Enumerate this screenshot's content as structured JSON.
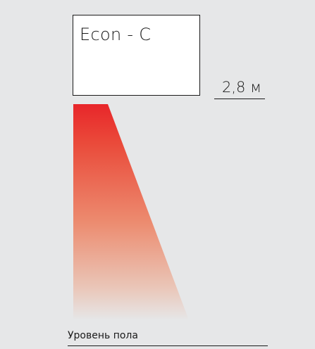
{
  "device": {
    "label": "Econ - C"
  },
  "mounting_height": {
    "label": "2,8 м"
  },
  "floor": {
    "label": "Уровень пола"
  },
  "colors": {
    "heat_top": "#e8262a",
    "heat_mid": "#ec8a6a",
    "heat_bottom": "#e6e7e8",
    "background": "#e6e7e8",
    "outline": "#1a1a1a"
  }
}
